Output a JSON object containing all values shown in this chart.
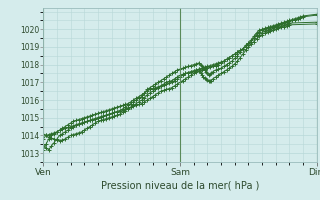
{
  "title": "",
  "xlabel": "Pression niveau de la mer( hPa )",
  "background_color": "#d5ecec",
  "plot_bg_color": "#d5ecec",
  "grid_color": "#b8d8d8",
  "line_color": "#2d6e2d",
  "vline_color": "#4a8a4a",
  "ylim": [
    1012.5,
    1021.2
  ],
  "yticks": [
    1013,
    1014,
    1015,
    1016,
    1017,
    1018,
    1019,
    1020
  ],
  "xtick_labels": [
    "Ven",
    "Sam",
    "Dim"
  ],
  "xtick_positions": [
    0,
    0.5,
    1.0
  ],
  "series": [
    {
      "x": [
        0.0,
        0.01,
        0.02,
        0.03,
        0.04,
        0.05,
        0.06,
        0.07,
        0.08,
        0.09,
        0.1,
        0.11,
        0.12,
        0.13,
        0.14,
        0.15,
        0.16,
        0.17,
        0.18,
        0.19,
        0.2,
        0.21,
        0.22,
        0.23,
        0.24,
        0.25,
        0.26,
        0.27,
        0.28,
        0.29,
        0.3,
        0.31,
        0.32,
        0.33,
        0.34,
        0.35,
        0.36,
        0.37,
        0.38,
        0.39,
        0.4,
        0.41,
        0.42,
        0.43,
        0.44,
        0.45,
        0.46,
        0.47,
        0.48,
        0.49,
        0.5,
        0.51,
        0.52,
        0.53,
        0.54,
        0.55,
        0.56,
        0.57,
        0.58,
        0.59,
        0.6,
        0.61,
        0.62,
        0.63,
        0.64,
        0.65,
        0.66,
        0.67,
        0.68,
        0.69,
        0.7,
        0.71,
        0.72,
        0.73,
        0.74,
        0.75,
        0.76,
        0.77,
        0.78,
        0.79,
        0.8,
        0.81,
        0.82,
        0.83,
        0.84,
        0.85,
        0.86,
        0.87,
        0.88,
        0.89,
        0.9,
        0.91,
        0.92,
        0.93,
        0.94,
        0.95,
        1.0
      ],
      "y": [
        1013.2,
        1013.5,
        1013.8,
        1014.0,
        1014.1,
        1014.2,
        1014.3,
        1014.4,
        1014.5,
        1014.6,
        1014.7,
        1014.8,
        1014.85,
        1014.9,
        1014.95,
        1015.0,
        1015.05,
        1015.1,
        1015.15,
        1015.2,
        1015.25,
        1015.3,
        1015.35,
        1015.4,
        1015.45,
        1015.5,
        1015.55,
        1015.6,
        1015.65,
        1015.7,
        1015.75,
        1015.8,
        1015.9,
        1016.0,
        1016.1,
        1016.2,
        1016.3,
        1016.4,
        1016.5,
        1016.6,
        1016.65,
        1016.7,
        1016.75,
        1016.8,
        1016.85,
        1016.9,
        1016.95,
        1017.0,
        1017.1,
        1017.2,
        1017.3,
        1017.4,
        1017.5,
        1017.55,
        1017.6,
        1017.65,
        1017.7,
        1017.75,
        1017.8,
        1017.85,
        1017.9,
        1017.95,
        1018.0,
        1018.05,
        1018.1,
        1018.15,
        1018.2,
        1018.3,
        1018.4,
        1018.5,
        1018.6,
        1018.7,
        1018.8,
        1018.9,
        1019.0,
        1019.1,
        1019.3,
        1019.5,
        1019.7,
        1019.85,
        1019.95,
        1020.0,
        1020.05,
        1020.1,
        1020.15,
        1020.2,
        1020.25,
        1020.3,
        1020.35,
        1020.4,
        1020.45,
        1020.5,
        1020.55,
        1020.6,
        1020.65,
        1020.7,
        1020.8
      ]
    },
    {
      "x": [
        0.0,
        0.01,
        0.02,
        0.03,
        0.04,
        0.05,
        0.06,
        0.07,
        0.08,
        0.09,
        0.1,
        0.11,
        0.12,
        0.13,
        0.14,
        0.15,
        0.16,
        0.17,
        0.18,
        0.19,
        0.2,
        0.21,
        0.22,
        0.23,
        0.24,
        0.25,
        0.26,
        0.27,
        0.28,
        0.29,
        0.3,
        0.31,
        0.32,
        0.33,
        0.34,
        0.35,
        0.36,
        0.37,
        0.38,
        0.39,
        0.4,
        0.41,
        0.42,
        0.43,
        0.44,
        0.45,
        0.46,
        0.47,
        0.48,
        0.49,
        0.5,
        0.51,
        0.52,
        0.53,
        0.54,
        0.55,
        0.56,
        0.57,
        0.58,
        0.59,
        0.6,
        0.61,
        0.62,
        0.63,
        0.64,
        0.65,
        0.66,
        0.67,
        0.68,
        0.69,
        0.7,
        0.71,
        0.72,
        0.73,
        0.74,
        0.75,
        0.76,
        0.77,
        0.78,
        0.79,
        0.8,
        0.81,
        0.82,
        0.83,
        0.84,
        0.85,
        0.86,
        0.87,
        0.88,
        0.89,
        0.9,
        0.91,
        0.92,
        0.93,
        0.94,
        0.95,
        1.0
      ],
      "y": [
        1013.8,
        1014.0,
        1014.05,
        1014.1,
        1014.15,
        1014.2,
        1014.3,
        1014.35,
        1014.4,
        1014.45,
        1014.5,
        1014.55,
        1014.6,
        1014.65,
        1014.7,
        1014.75,
        1014.8,
        1014.85,
        1014.9,
        1014.95,
        1015.0,
        1015.05,
        1015.1,
        1015.15,
        1015.2,
        1015.25,
        1015.3,
        1015.35,
        1015.4,
        1015.45,
        1015.5,
        1015.55,
        1015.6,
        1015.65,
        1015.7,
        1015.75,
        1015.8,
        1015.9,
        1016.0,
        1016.1,
        1016.2,
        1016.3,
        1016.4,
        1016.5,
        1016.55,
        1016.6,
        1016.65,
        1016.7,
        1016.8,
        1016.9,
        1017.0,
        1017.1,
        1017.2,
        1017.3,
        1017.4,
        1017.5,
        1017.6,
        1017.65,
        1017.7,
        1017.75,
        1017.8,
        1017.85,
        1017.9,
        1017.95,
        1018.0,
        1018.1,
        1018.2,
        1018.3,
        1018.4,
        1018.5,
        1018.6,
        1018.7,
        1018.8,
        1018.9,
        1019.0,
        1019.2,
        1019.4,
        1019.6,
        1019.8,
        1019.95,
        1020.0,
        1020.05,
        1020.1,
        1020.15,
        1020.2,
        1020.25,
        1020.3,
        1020.35,
        1020.4,
        1020.45,
        1020.5,
        1020.55,
        1020.6,
        1020.65,
        1020.7,
        1020.75,
        1020.85
      ]
    },
    {
      "x": [
        0.0,
        0.01,
        0.02,
        0.03,
        0.04,
        0.05,
        0.06,
        0.07,
        0.08,
        0.09,
        0.1,
        0.11,
        0.12,
        0.13,
        0.14,
        0.15,
        0.16,
        0.17,
        0.18,
        0.19,
        0.2,
        0.21,
        0.22,
        0.23,
        0.24,
        0.25,
        0.26,
        0.27,
        0.28,
        0.29,
        0.3,
        0.31,
        0.32,
        0.33,
        0.34,
        0.35,
        0.36,
        0.37,
        0.38,
        0.39,
        0.4,
        0.41,
        0.42,
        0.43,
        0.44,
        0.45,
        0.46,
        0.47,
        0.48,
        0.49,
        0.5,
        0.51,
        0.52,
        0.53,
        0.54,
        0.55,
        0.56,
        0.57,
        0.575,
        0.58,
        0.585,
        0.59,
        0.595,
        0.6,
        0.605,
        0.61,
        0.615,
        0.62,
        0.63,
        0.64,
        0.65,
        0.66,
        0.67,
        0.68,
        0.69,
        0.7,
        0.71,
        0.72,
        0.73,
        0.74,
        0.75,
        0.76,
        0.77,
        0.78,
        0.79,
        0.8,
        0.81,
        0.82,
        0.83,
        0.84,
        0.85,
        0.86,
        0.87,
        0.88,
        0.89,
        0.9,
        1.0
      ],
      "y": [
        1013.5,
        1013.3,
        1013.2,
        1013.4,
        1013.6,
        1013.8,
        1014.0,
        1014.1,
        1014.2,
        1014.3,
        1014.4,
        1014.5,
        1014.6,
        1014.65,
        1014.7,
        1014.75,
        1014.8,
        1014.85,
        1014.9,
        1014.95,
        1015.0,
        1015.05,
        1015.1,
        1015.15,
        1015.2,
        1015.25,
        1015.3,
        1015.35,
        1015.4,
        1015.5,
        1015.6,
        1015.7,
        1015.8,
        1015.9,
        1016.0,
        1016.1,
        1016.2,
        1016.4,
        1016.6,
        1016.7,
        1016.8,
        1016.9,
        1017.0,
        1017.1,
        1017.2,
        1017.3,
        1017.4,
        1017.5,
        1017.6,
        1017.7,
        1017.75,
        1017.8,
        1017.85,
        1017.9,
        1017.95,
        1018.0,
        1018.05,
        1018.1,
        1018.0,
        1017.9,
        1017.8,
        1017.7,
        1017.6,
        1017.5,
        1017.4,
        1017.45,
        1017.5,
        1017.6,
        1017.7,
        1017.75,
        1017.8,
        1017.9,
        1018.0,
        1018.1,
        1018.2,
        1018.35,
        1018.5,
        1018.7,
        1018.9,
        1019.1,
        1019.2,
        1019.3,
        1019.5,
        1019.6,
        1019.7,
        1019.8,
        1019.9,
        1019.95,
        1020.0,
        1020.05,
        1020.1,
        1020.15,
        1020.2,
        1020.25,
        1020.3,
        1020.35,
        1020.4
      ]
    },
    {
      "x": [
        0.0,
        0.01,
        0.02,
        0.03,
        0.04,
        0.05,
        0.06,
        0.07,
        0.08,
        0.09,
        0.1,
        0.11,
        0.12,
        0.13,
        0.14,
        0.15,
        0.16,
        0.17,
        0.18,
        0.19,
        0.2,
        0.21,
        0.22,
        0.23,
        0.24,
        0.25,
        0.26,
        0.27,
        0.28,
        0.29,
        0.3,
        0.31,
        0.32,
        0.33,
        0.34,
        0.35,
        0.36,
        0.37,
        0.38,
        0.39,
        0.4,
        0.41,
        0.42,
        0.43,
        0.44,
        0.45,
        0.46,
        0.47,
        0.48,
        0.49,
        0.5,
        0.51,
        0.52,
        0.53,
        0.54,
        0.55,
        0.56,
        0.57,
        0.575,
        0.58,
        0.585,
        0.59,
        0.595,
        0.6,
        0.605,
        0.61,
        0.615,
        0.62,
        0.63,
        0.64,
        0.65,
        0.66,
        0.67,
        0.68,
        0.69,
        0.7,
        0.71,
        0.72,
        0.73,
        0.74,
        0.75,
        0.76,
        0.77,
        0.78,
        0.79,
        0.8,
        0.81,
        0.82,
        0.83,
        0.84,
        0.85,
        0.86,
        0.87,
        0.88,
        0.89,
        0.9,
        1.0
      ],
      "y": [
        1014.1,
        1014.0,
        1013.9,
        1013.85,
        1013.8,
        1013.75,
        1013.7,
        1013.75,
        1013.8,
        1013.9,
        1014.0,
        1014.05,
        1014.1,
        1014.15,
        1014.2,
        1014.3,
        1014.4,
        1014.5,
        1014.6,
        1014.7,
        1014.8,
        1014.85,
        1014.9,
        1014.95,
        1015.0,
        1015.05,
        1015.1,
        1015.15,
        1015.2,
        1015.3,
        1015.4,
        1015.5,
        1015.6,
        1015.7,
        1015.8,
        1015.9,
        1016.0,
        1016.1,
        1016.3,
        1016.4,
        1016.5,
        1016.6,
        1016.7,
        1016.8,
        1016.9,
        1017.0,
        1017.05,
        1017.1,
        1017.2,
        1017.3,
        1017.4,
        1017.45,
        1017.5,
        1017.55,
        1017.6,
        1017.65,
        1017.7,
        1017.75,
        1017.55,
        1017.4,
        1017.3,
        1017.25,
        1017.2,
        1017.15,
        1017.1,
        1017.05,
        1017.1,
        1017.2,
        1017.3,
        1017.4,
        1017.5,
        1017.6,
        1017.7,
        1017.8,
        1017.9,
        1018.05,
        1018.2,
        1018.4,
        1018.6,
        1018.8,
        1019.0,
        1019.15,
        1019.3,
        1019.45,
        1019.6,
        1019.7,
        1019.8,
        1019.85,
        1019.9,
        1019.95,
        1020.0,
        1020.05,
        1020.1,
        1020.15,
        1020.2,
        1020.25,
        1020.3
      ]
    }
  ]
}
